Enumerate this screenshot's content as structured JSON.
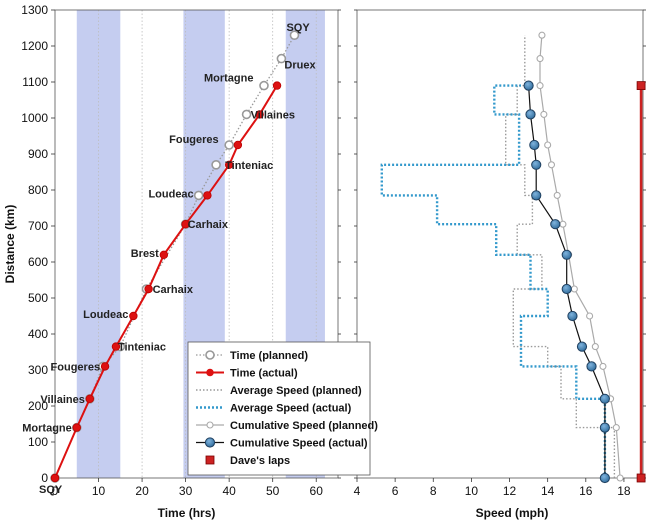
{
  "chart_data": [
    {
      "type": "line",
      "panel": "time",
      "xlabel": "Time (hrs)",
      "ylabel": "Distance (km)",
      "xlim": [
        0,
        65
      ],
      "ylim": [
        0,
        1300
      ],
      "xticks": [
        0,
        10,
        20,
        30,
        40,
        50,
        60
      ],
      "yticks": [
        0,
        100,
        200,
        300,
        400,
        500,
        600,
        700,
        800,
        900,
        1000,
        1100,
        1200,
        1300
      ],
      "night_bands": [
        [
          5,
          15
        ],
        [
          29.5,
          39
        ],
        [
          53,
          62
        ]
      ],
      "series": [
        {
          "name": "Time (planned)",
          "color": "#999999",
          "x": [
            0,
            5,
            8,
            11,
            15,
            21,
            30,
            33,
            37,
            40,
            44,
            48,
            52,
            55
          ],
          "y": [
            0,
            140,
            220,
            310,
            365,
            525,
            705,
            785,
            870,
            925,
            1010,
            1090,
            1165,
            1230
          ]
        },
        {
          "name": "Time (actual)",
          "color": "#dd1111",
          "x": [
            0,
            5,
            8,
            11.5,
            14,
            18,
            21.5,
            25,
            30,
            35,
            40,
            42,
            47,
            51
          ],
          "y": [
            0,
            140,
            220,
            310,
            365,
            450,
            525,
            620,
            705,
            785,
            870,
            925,
            1010,
            1090
          ]
        }
      ],
      "point_labels": [
        {
          "text": "SQY",
          "x": 0,
          "y": 0
        },
        {
          "text": "Mortagne",
          "x": 5,
          "y": 140
        },
        {
          "text": "Villaines",
          "x": 8,
          "y": 220
        },
        {
          "text": "Fougeres",
          "x": 11.5,
          "y": 310
        },
        {
          "text": "Tinteniac",
          "x": 14,
          "y": 365
        },
        {
          "text": "Loudeac",
          "x": 18,
          "y": 450
        },
        {
          "text": "Carhaix",
          "x": 21.5,
          "y": 525
        },
        {
          "text": "Brest",
          "x": 25,
          "y": 620
        },
        {
          "text": "Carhaix",
          "x": 30,
          "y": 705
        },
        {
          "text": "Loudeac",
          "x": 33,
          "y": 785
        },
        {
          "text": "Tinteniac",
          "x": 40,
          "y": 870
        },
        {
          "text": "Fougeres",
          "x": 40,
          "y": 925
        },
        {
          "text": "Villaines",
          "x": 44,
          "y": 1010
        },
        {
          "text": "Mortagne",
          "x": 48,
          "y": 1090
        },
        {
          "text": "Druex",
          "x": 52,
          "y": 1165
        },
        {
          "text": "SQY",
          "x": 55,
          "y": 1230
        }
      ]
    },
    {
      "type": "line",
      "panel": "speed",
      "xlabel": "Speed (mph)",
      "xlim": [
        4,
        19
      ],
      "ylim": [
        0,
        1300
      ],
      "xticks": [
        4,
        6,
        8,
        10,
        12,
        14,
        16,
        18
      ],
      "series": [
        {
          "name": "Average Speed (planned)",
          "style": "dotted",
          "color": "#999999",
          "x": [
            17.5,
            17.5,
            15.5,
            15.5,
            14.7,
            14.7,
            14,
            14,
            12.2,
            12.2,
            13.7,
            13.7,
            12.4,
            12.4,
            13.2,
            13.2,
            12.8,
            12.8,
            11.8,
            11.8,
            11.8,
            11.8,
            12.4,
            12.4,
            12.8,
            12.8
          ],
          "y": [
            0,
            140,
            140,
            220,
            220,
            310,
            310,
            365,
            365,
            525,
            525,
            620,
            620,
            705,
            705,
            785,
            785,
            870,
            870,
            925,
            925,
            1010,
            1010,
            1090,
            1090,
            1230
          ]
        },
        {
          "name": "Average Speed (actual)",
          "style": "dotted",
          "color": "#3399cc",
          "x": [
            17.0,
            17.0,
            15.5,
            15.5,
            12.6,
            12.6,
            14.0,
            14.0,
            13.1,
            13.1,
            11.3,
            11.3,
            8.2,
            8.2,
            5.3,
            5.3,
            12.5,
            12.5,
            11.2,
            11.2,
            12.6,
            12.6
          ],
          "y": [
            0,
            220,
            220,
            310,
            310,
            450,
            450,
            525,
            525,
            620,
            620,
            705,
            705,
            785,
            785,
            870,
            870,
            1010,
            1010,
            1090,
            1090,
            1090
          ]
        },
        {
          "name": "Cumulative Speed (planned)",
          "color": "#aaaaaa",
          "x": [
            17.8,
            17.6,
            17.3,
            16.9,
            16.5,
            16.2,
            15.4,
            15.1,
            14.8,
            14.5,
            14.2,
            14.0,
            13.8,
            13.6,
            13.6,
            13.7
          ],
          "y": [
            0,
            140,
            220,
            310,
            365,
            450,
            525,
            620,
            705,
            785,
            870,
            925,
            1010,
            1090,
            1165,
            1230
          ]
        },
        {
          "name": "Cumulative Speed (actual)",
          "color": "#336699",
          "x": [
            17.0,
            17.0,
            17.0,
            16.3,
            15.8,
            15.3,
            15.0,
            15.0,
            14.4,
            13.4,
            13.4,
            13.3,
            13.1,
            13.0
          ],
          "y": [
            0,
            140,
            220,
            310,
            365,
            450,
            525,
            620,
            705,
            785,
            870,
            925,
            1010,
            1090
          ]
        }
      ],
      "annotations": [
        {
          "name": "Dave's laps",
          "color": "#cc2222",
          "x": 18.9,
          "y_range": [
            0,
            1090
          ]
        }
      ]
    }
  ],
  "legend": {
    "entries": [
      "Time (planned)",
      "Time (actual)",
      "Average Speed (planned)",
      "Average Speed (actual)",
      "Cumulative Speed (planned)",
      "Cumulative Speed (actual)",
      "Dave's laps"
    ]
  }
}
